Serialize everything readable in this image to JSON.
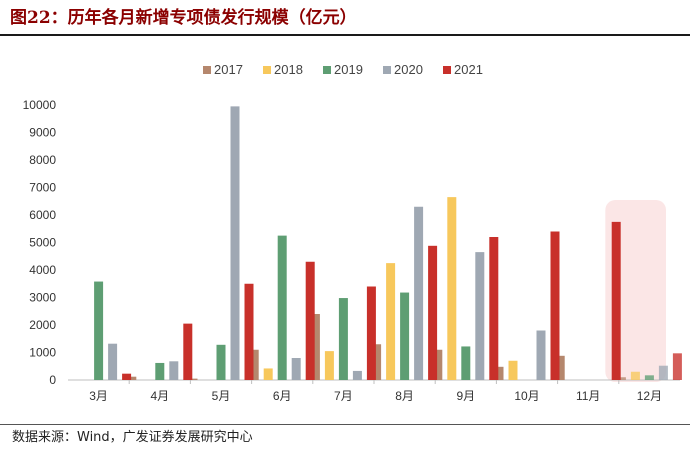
{
  "figure": {
    "title": "图22：历年各月新增专项债发行规模（亿元）",
    "source": "数据来源：Wind，广发证券发展研究中心"
  },
  "chart_data": {
    "type": "bar",
    "title": "",
    "xlabel": "",
    "ylabel": "",
    "categories": [
      "3月",
      "4月",
      "5月",
      "6月",
      "7月",
      "8月",
      "9月",
      "10月",
      "11月",
      "12月"
    ],
    "ylim": [
      0,
      10000
    ],
    "yticks": [
      "0",
      "1000",
      "2000",
      "3000",
      "4000",
      "5000",
      "6000",
      "7000",
      "8000",
      "9000",
      "10000"
    ],
    "grid": false,
    "legend_position": "top",
    "highlight_category": "12月",
    "highlight_color": "#fbe6e6",
    "series": [
      {
        "name": "2017",
        "color": "#b5876d",
        "values": [
          0,
          120,
          50,
          1100,
          2400,
          1300,
          1100,
          480,
          880,
          100
        ]
      },
      {
        "name": "2018",
        "color": "#f7c85c",
        "values": [
          0,
          0,
          0,
          420,
          1050,
          4250,
          6650,
          700,
          0,
          300
        ]
      },
      {
        "name": "2019",
        "color": "#5e9e73",
        "values": [
          3580,
          620,
          1280,
          5250,
          2980,
          3180,
          1220,
          0,
          0,
          170
        ]
      },
      {
        "name": "2020",
        "color": "#9fa8b3",
        "values": [
          1320,
          680,
          9950,
          800,
          330,
          6300,
          4650,
          1800,
          0,
          520
        ]
      },
      {
        "name": "2021",
        "color": "#c8302a",
        "values": [
          230,
          2050,
          3500,
          4300,
          3400,
          4880,
          5200,
          5400,
          5750,
          970
        ]
      }
    ]
  }
}
